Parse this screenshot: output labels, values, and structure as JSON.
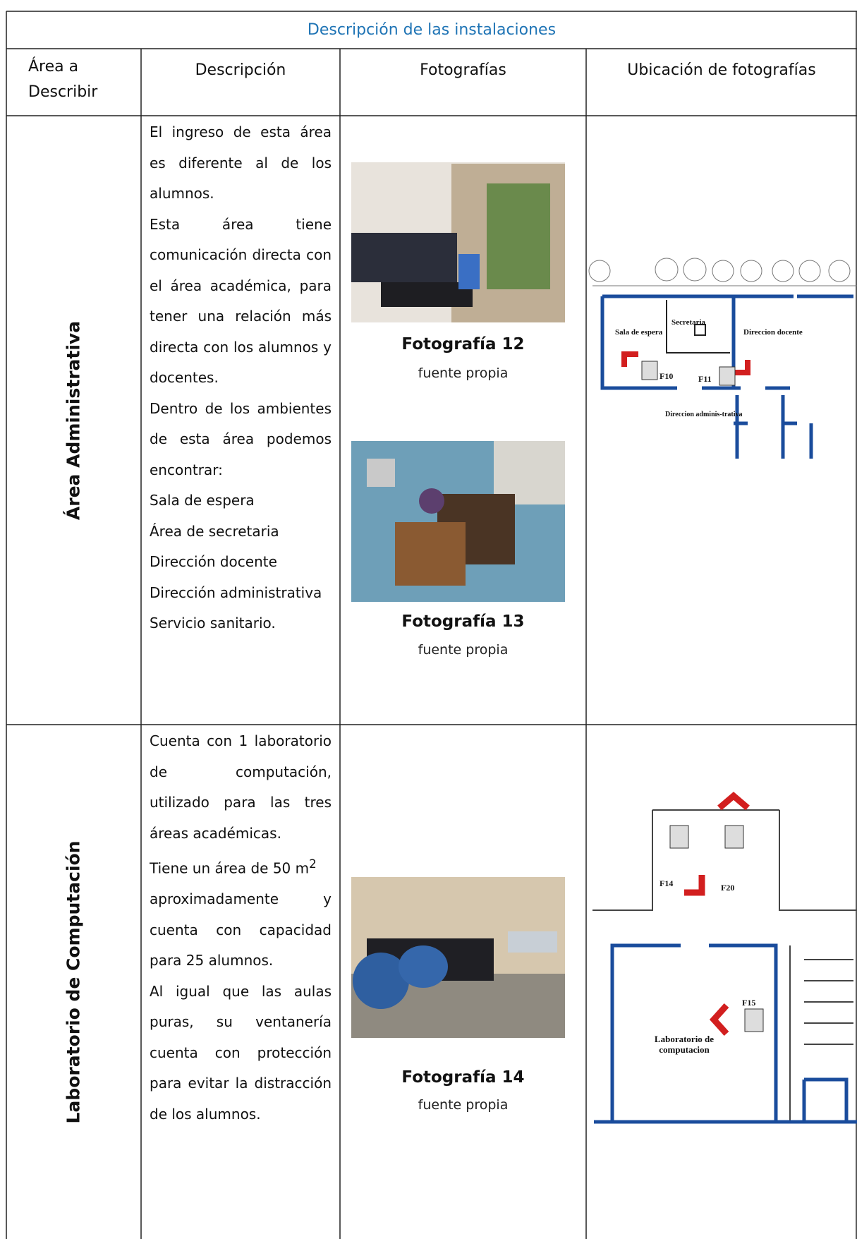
{
  "header": {
    "title": "Descripción de las instalaciones"
  },
  "table": {
    "columns": [
      "Área a Describir",
      "Descripción",
      "Fotografías",
      "Ubicación de fotografías"
    ],
    "rows": [
      {
        "area": "Área Administrativa",
        "description": [
          "El ingreso de esta área es diferente al de los alumnos.",
          "Esta área tiene comunicación directa con el área académica, para tener una relación más directa con los alumnos y docentes.",
          "Dentro de los ambientes de esta área podemos encontrar:",
          "Sala de espera",
          "Área de secretaria",
          "Dirección docente",
          "Dirección administrativa",
          "Servicio sanitario."
        ],
        "photos": [
          {
            "caption": "Fotografía 12",
            "source": "fuente propia"
          },
          {
            "caption": "Fotografía 13",
            "source": "fuente propia"
          }
        ],
        "plan_labels": [
          "Sala de espera",
          "Secretaria",
          "Direccion docente",
          "Direccion adminis-trativa",
          "F10",
          "F11"
        ]
      },
      {
        "area": "Laboratorio de Computación",
        "description": [
          "Cuenta con 1 laboratorio de computación, utilizado para las tres áreas académicas.",
          {
            "text": "Tiene un área de 50 m",
            "sup": "2",
            "rest": "aproximadamente y cuenta con capacidad para 25 alumnos."
          },
          "Al igual que las aulas puras, su ventanería cuenta con protección para evitar la distracción de los alumnos."
        ],
        "photos": [
          {
            "caption": "Fotografía 14",
            "source": "fuente propia"
          }
        ],
        "plan_labels": [
          "F14",
          "F20",
          "F15",
          "Laboratorio de computacion"
        ]
      }
    ]
  }
}
